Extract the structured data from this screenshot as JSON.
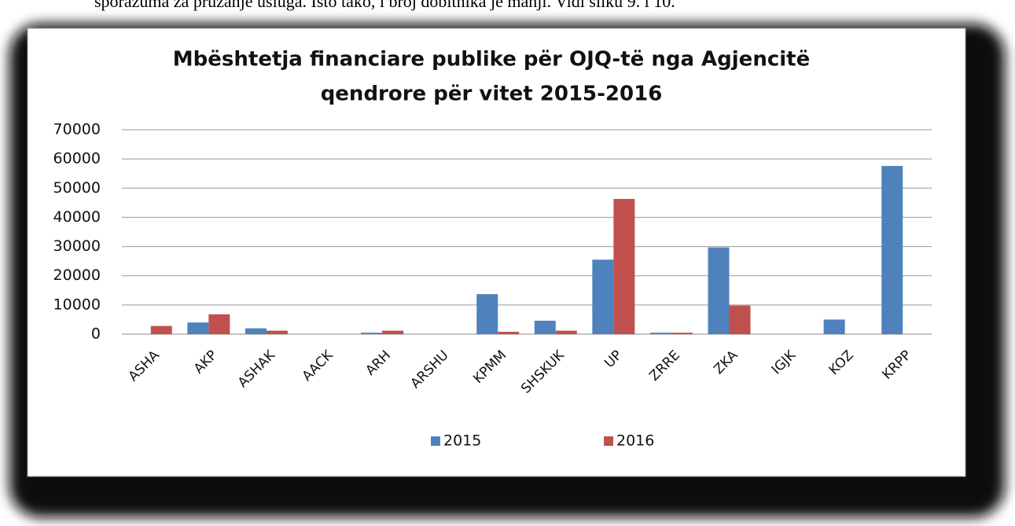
{
  "document_text": "sporazuma za pružanje usluga. Isto tako, i broj dobitnika je manji. Vidi sliku 9. i 10.",
  "chart_data": {
    "type": "bar",
    "title": [
      "Mbështetja financiare publike për OJQ-të nga Agjencitë",
      "qendrore për vitet 2015-2016"
    ],
    "categories": [
      "ASHA",
      "AKP",
      "ASHAK",
      "AACK",
      "ARH",
      "ARSHU",
      "KPMM",
      "SHSKUK",
      "UP",
      "ZRRE",
      "ZKA",
      "IGJK",
      "KOZ",
      "KRPP"
    ],
    "series": [
      {
        "name": "2015",
        "color": "#4f81bd",
        "values": [
          0,
          4000,
          2000,
          0,
          500,
          0,
          13700,
          4600,
          25500,
          500,
          29700,
          0,
          5000,
          57600
        ]
      },
      {
        "name": "2016",
        "color": "#c0504d",
        "values": [
          2800,
          6800,
          1200,
          0,
          1200,
          0,
          800,
          1200,
          46300,
          500,
          9800,
          0,
          0,
          0
        ]
      }
    ],
    "ylim": [
      0,
      70000
    ],
    "yticks": [
      0,
      10000,
      20000,
      30000,
      40000,
      50000,
      60000,
      70000
    ],
    "grid": true,
    "legend": "bottom"
  }
}
